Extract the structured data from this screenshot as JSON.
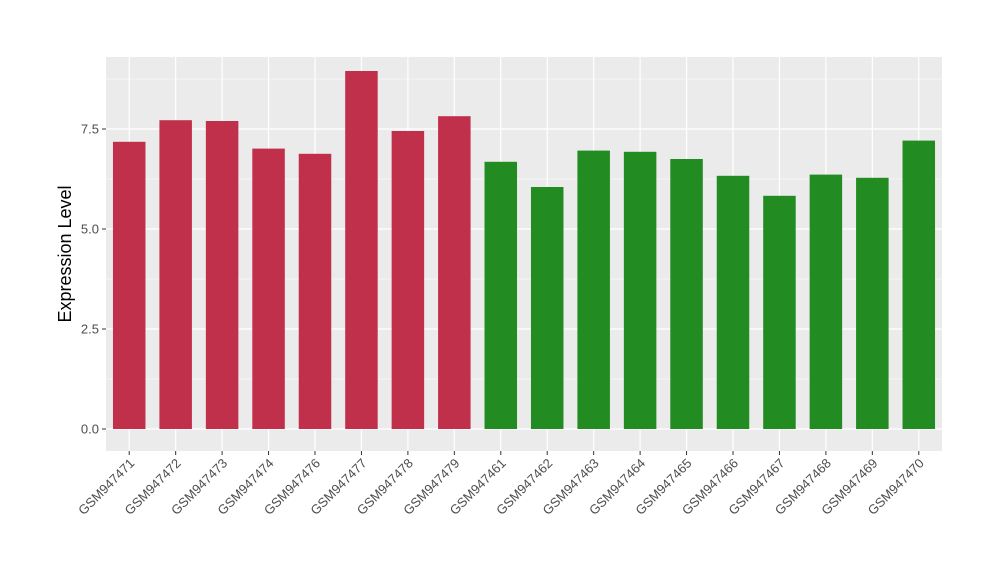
{
  "chart_data": {
    "type": "bar",
    "title": "",
    "xlabel": "",
    "ylabel": "Expression Level",
    "ylim": [
      -0.55,
      9.3
    ],
    "yticks": [
      0.0,
      2.5,
      5.0,
      7.5
    ],
    "ytick_labels": [
      "0.0",
      "2.5",
      "5.0",
      "7.5"
    ],
    "grid": true,
    "legend": "none",
    "panel_background": "#ebebeb",
    "grid_color": "#ffffff",
    "categories": [
      "GSM947471",
      "GSM947472",
      "GSM947473",
      "GSM947474",
      "GSM947476",
      "GSM947477",
      "GSM947478",
      "GSM947479",
      "GSM947461",
      "GSM947462",
      "GSM947463",
      "GSM947464",
      "GSM947465",
      "GSM947466",
      "GSM947467",
      "GSM947468",
      "GSM947469",
      "GSM947470"
    ],
    "values": [
      7.18,
      7.72,
      7.7,
      7.01,
      6.88,
      8.95,
      7.45,
      7.82,
      6.68,
      6.05,
      6.96,
      6.93,
      6.75,
      6.33,
      5.83,
      6.36,
      6.28,
      7.21
    ],
    "colors": [
      "#c1304a",
      "#c1304a",
      "#c1304a",
      "#c1304a",
      "#c1304a",
      "#c1304a",
      "#c1304a",
      "#c1304a",
      "#228b22",
      "#228b22",
      "#228b22",
      "#228b22",
      "#228b22",
      "#228b22",
      "#228b22",
      "#228b22",
      "#228b22",
      "#228b22"
    ]
  }
}
